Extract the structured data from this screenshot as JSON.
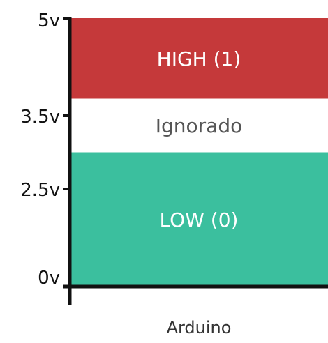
{
  "diagram": {
    "x_label": "Arduino",
    "y_ticks": [
      "5v",
      "3.5v",
      "2.5v",
      "0v"
    ],
    "zones": [
      {
        "name": "high",
        "label": "HIGH (1)",
        "from": 3.5,
        "to": 5.0,
        "color": "#c5393a"
      },
      {
        "name": "ignored",
        "label": "Ignorado",
        "from": 2.5,
        "to": 3.5,
        "color": "#ffffff"
      },
      {
        "name": "low",
        "label": "LOW (0)",
        "from": 0.0,
        "to": 2.5,
        "color": "#3bbf9e"
      }
    ]
  }
}
